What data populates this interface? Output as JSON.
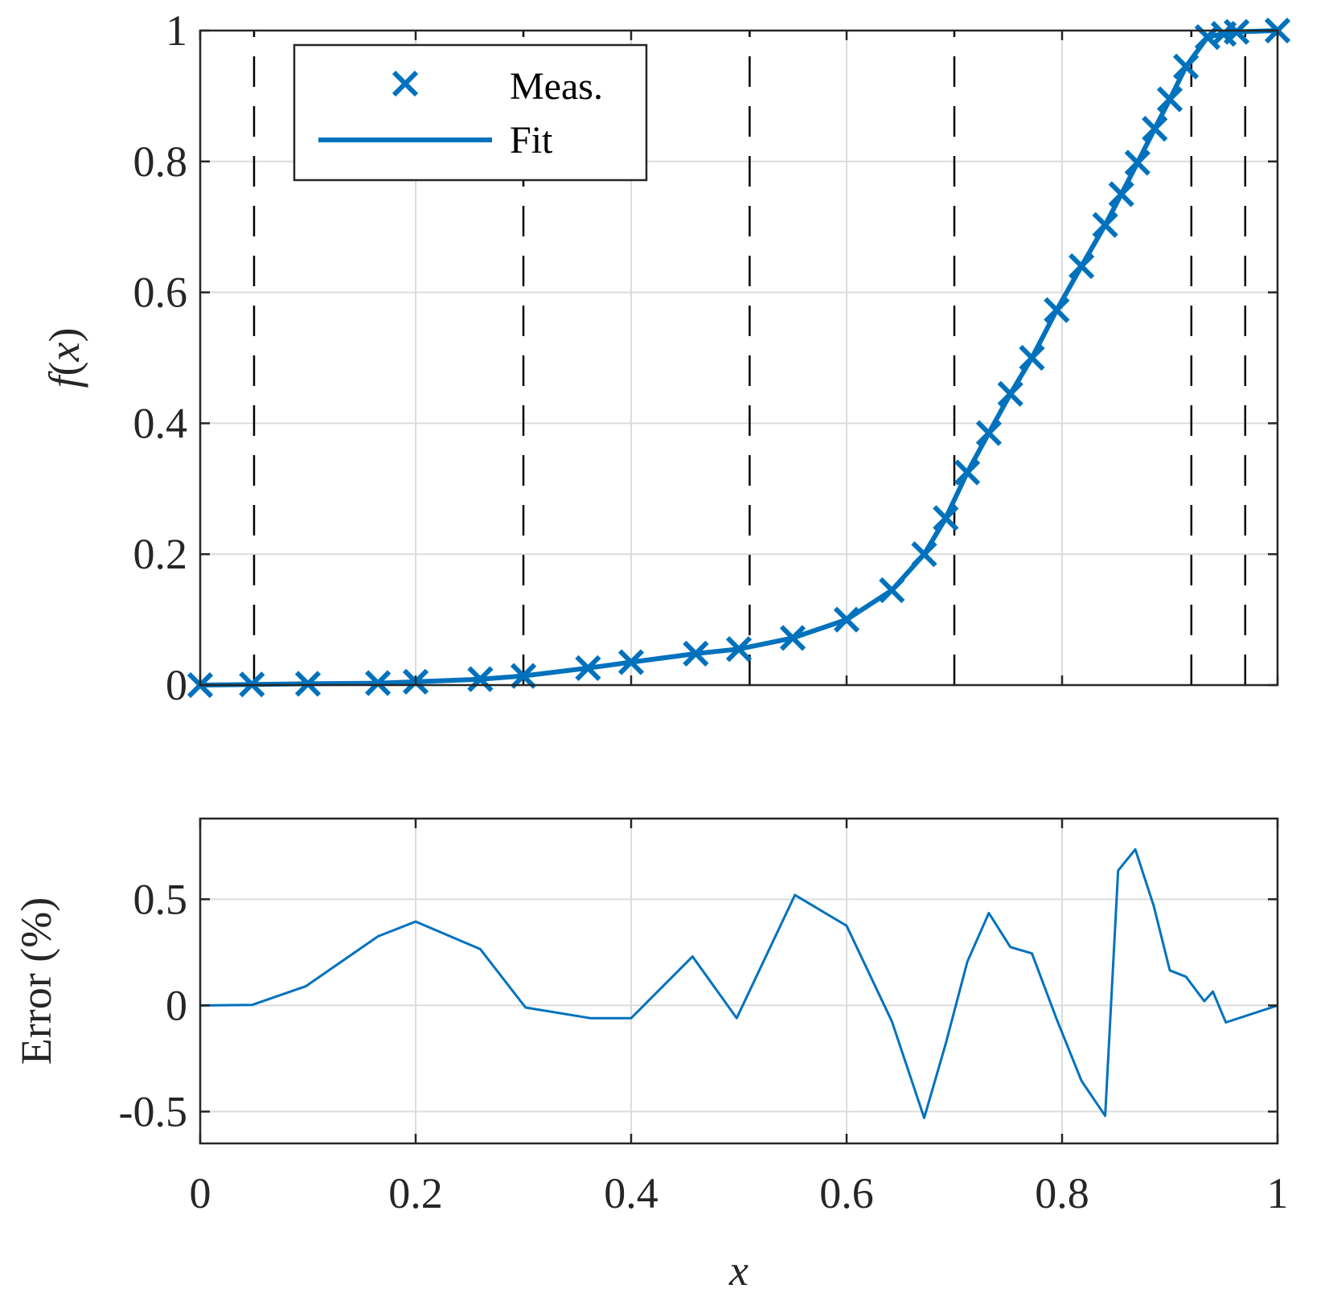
{
  "colors": {
    "series": "#0072BD",
    "axes": "#262626",
    "grid": "#dcdcdc",
    "knot_lines": "#000000"
  },
  "chart_data": [
    {
      "type": "line",
      "ylabel_parts": [
        "f",
        "(",
        "x",
        ")"
      ],
      "xlim": [
        0,
        1
      ],
      "ylim": [
        0,
        1
      ],
      "xticks": [
        0,
        0.2,
        0.4,
        0.6,
        0.8,
        1
      ],
      "yticks": [
        0,
        0.2,
        0.4,
        0.6,
        0.8,
        1
      ],
      "ytick_labels": [
        "0",
        "0.2",
        "0.4",
        "0.6",
        "0.8",
        "1"
      ],
      "grid": true,
      "show_x_tick_labels": false,
      "legend": {
        "position": "top-left",
        "entries": [
          "Meas.",
          "Fit"
        ]
      },
      "knots_dashed_vertical": [
        0.05,
        0.3,
        0.51,
        0.7,
        0.92,
        0.97
      ],
      "series": [
        {
          "name": "Meas.",
          "style": "markers-x",
          "x": [
            0,
            0.048,
            0.1,
            0.165,
            0.2,
            0.26,
            0.3,
            0.36,
            0.4,
            0.46,
            0.5,
            0.55,
            0.6,
            0.642,
            0.672,
            0.692,
            0.712,
            0.732,
            0.752,
            0.772,
            0.795,
            0.818,
            0.84,
            0.855,
            0.87,
            0.886,
            0.9,
            0.915,
            0.935,
            0.95,
            0.962,
            1.0
          ],
          "y": [
            0,
            0.001,
            0.002,
            0.003,
            0.005,
            0.009,
            0.014,
            0.026,
            0.035,
            0.048,
            0.055,
            0.072,
            0.1,
            0.145,
            0.2,
            0.255,
            0.325,
            0.385,
            0.445,
            0.5,
            0.573,
            0.64,
            0.703,
            0.75,
            0.798,
            0.85,
            0.895,
            0.945,
            0.99,
            0.995,
            0.998,
            1.0
          ]
        },
        {
          "name": "Fit",
          "style": "line",
          "x": [
            0,
            0.048,
            0.1,
            0.165,
            0.2,
            0.26,
            0.3,
            0.36,
            0.4,
            0.46,
            0.5,
            0.55,
            0.6,
            0.642,
            0.672,
            0.692,
            0.712,
            0.732,
            0.752,
            0.772,
            0.795,
            0.818,
            0.84,
            0.855,
            0.87,
            0.886,
            0.9,
            0.915,
            0.935,
            0.95,
            0.962,
            1.0
          ],
          "y": [
            0,
            0.001,
            0.002,
            0.003,
            0.005,
            0.009,
            0.014,
            0.026,
            0.035,
            0.048,
            0.055,
            0.072,
            0.1,
            0.145,
            0.2,
            0.255,
            0.325,
            0.385,
            0.445,
            0.5,
            0.573,
            0.64,
            0.703,
            0.75,
            0.798,
            0.85,
            0.895,
            0.945,
            0.99,
            0.995,
            0.998,
            1.0
          ]
        }
      ]
    },
    {
      "type": "line",
      "ylabel": "Error (%)",
      "xlabel": "x",
      "xlim": [
        0,
        1
      ],
      "ylim": [
        -0.65,
        0.88
      ],
      "xticks": [
        0,
        0.2,
        0.4,
        0.6,
        0.8,
        1
      ],
      "xtick_labels": [
        "0",
        "0.2",
        "0.4",
        "0.6",
        "0.8",
        "1"
      ],
      "yticks": [
        -0.5,
        0,
        0.5
      ],
      "ytick_labels": [
        "-0.5",
        "0",
        "0.5"
      ],
      "grid": true,
      "series": [
        {
          "style": "line",
          "x": [
            0,
            0.048,
            0.098,
            0.165,
            0.2,
            0.26,
            0.302,
            0.362,
            0.4,
            0.457,
            0.498,
            0.552,
            0.6,
            0.642,
            0.672,
            0.692,
            0.712,
            0.732,
            0.752,
            0.772,
            0.795,
            0.818,
            0.84,
            0.852,
            0.868,
            0.885,
            0.9,
            0.915,
            0.932,
            0.94,
            0.952,
            1.0
          ],
          "y": [
            0,
            0.002,
            0.09,
            0.325,
            0.395,
            0.265,
            -0.01,
            -0.06,
            -0.06,
            0.23,
            -0.06,
            0.52,
            0.375,
            -0.075,
            -0.53,
            -0.18,
            0.205,
            0.435,
            0.275,
            0.245,
            -0.065,
            -0.355,
            -0.52,
            0.635,
            0.735,
            0.47,
            0.165,
            0.135,
            0.02,
            0.065,
            -0.08,
            0.0
          ]
        }
      ]
    }
  ]
}
